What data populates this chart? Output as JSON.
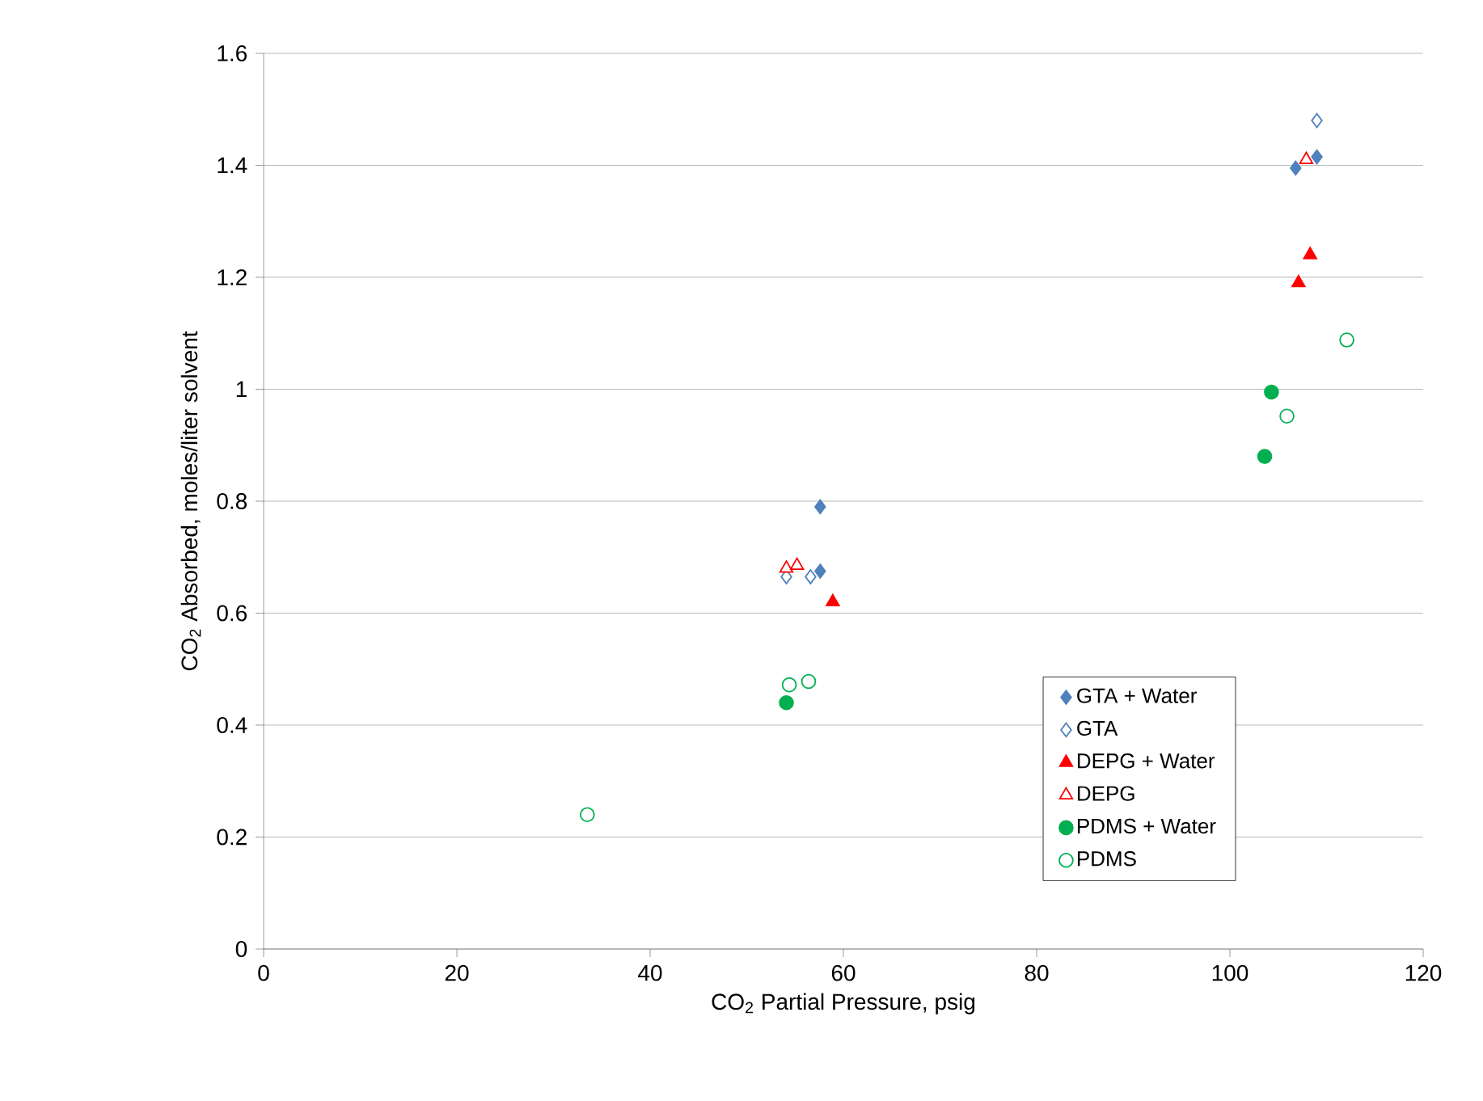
{
  "chart_data": {
    "type": "scatter",
    "xlabel": "CO$_{2}$ Partial Pressure, psig",
    "ylabel": "CO$_{2}$ Absorbed, moles/liter solvent",
    "xlim": [
      0,
      120
    ],
    "xticks": [
      0,
      20,
      40,
      60,
      80,
      100,
      120
    ],
    "ylim": [
      0,
      1.6
    ],
    "yticks": [
      0,
      0.2,
      0.4,
      0.6,
      0.8,
      1,
      1.2,
      1.4,
      1.6
    ],
    "grid": "y",
    "legend": "bottom right",
    "series": [
      {
        "name": "GTA + Water",
        "color": "#4f81bd",
        "marker": "diamond",
        "x": [
          57.6,
          57.6,
          106.8,
          109.0
        ],
        "values": [
          0.79,
          0.675,
          1.395,
          1.415
        ]
      },
      {
        "name": "GTA",
        "color": "#4f81bd",
        "marker": "diamond",
        "x": [
          54.1,
          56.6,
          109.0
        ],
        "values": [
          0.665,
          0.665,
          1.48
        ]
      },
      {
        "name": "DEPG + Water",
        "color": "#ff0000",
        "marker": "triangle",
        "x": [
          58.9,
          107.1,
          108.3
        ],
        "values": [
          0.62,
          1.19,
          1.24
        ]
      },
      {
        "name": "DEPG",
        "color": "#ff0000",
        "marker": "triangle",
        "x": [
          54.1,
          55.2,
          107.9
        ],
        "values": [
          0.68,
          0.685,
          1.41
        ]
      },
      {
        "name": "PDMS + Water",
        "color": "#00b050",
        "marker": "circle",
        "x": [
          54.1,
          104.3,
          103.6
        ],
        "values": [
          0.44,
          0.995,
          0.88
        ]
      },
      {
        "name": "PDMS",
        "color": "#00b050",
        "marker": "circle",
        "x": [
          54.4,
          56.4,
          105.9,
          112.1,
          33.5
        ],
        "values": [
          0.472,
          0.478,
          0.952,
          1.088,
          0.24
        ]
      }
    ]
  }
}
